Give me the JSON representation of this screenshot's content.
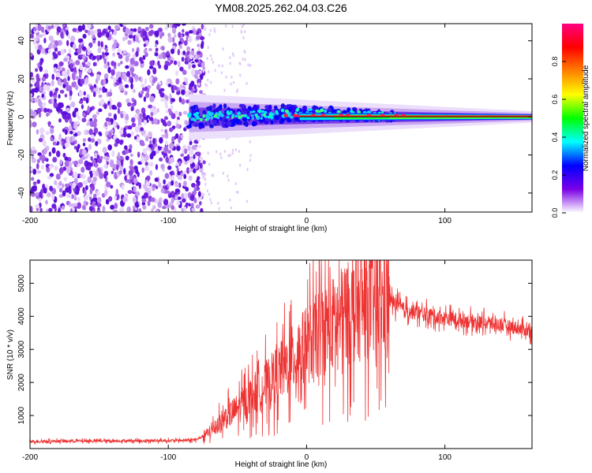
{
  "title": "YM08.2025.262.04.03.C26",
  "chart_data": [
    {
      "type": "heatmap",
      "title": "",
      "xlabel": "Height of straight line (km)",
      "ylabel": "Frequency (Hz)",
      "xlim": [
        -200,
        163
      ],
      "ylim": [
        -50,
        49
      ],
      "xticks": [
        -200,
        -100,
        0,
        100
      ],
      "yticks": [
        -40,
        -20,
        0,
        20,
        40
      ],
      "colorbar": {
        "label": "Normalized spectral amplitude",
        "range": [
          0,
          1
        ],
        "ticks": [
          "0.0",
          "0.2",
          "0.4",
          "0.6",
          "0.8"
        ],
        "colors": [
          "#ffffff",
          "#7a00e6",
          "#0000ff",
          "#00ffff",
          "#00ff00",
          "#ffff00",
          "#ff8000",
          "#ff0000",
          "#ff0080"
        ]
      },
      "description_fields": {
        "noise_region_x": [
          -200,
          -80
        ],
        "signal_band_center_hz": 0
      }
    },
    {
      "type": "line",
      "title": "",
      "xlabel": "Height of straight line (km)",
      "ylabel": "SNR (10 * v/v)",
      "xlim": [
        -200,
        163
      ],
      "ylim": [
        0,
        5700
      ],
      "xticks": [
        -200,
        -100,
        0,
        100
      ],
      "yticks": [
        1000,
        2000,
        3000,
        4000,
        5000
      ],
      "color": "#ee3333",
      "series": [
        {
          "name": "SNR",
          "x": [
            -200,
            -150,
            -100,
            -80,
            -70,
            -60,
            -50,
            -40,
            -30,
            -20,
            -10,
            0,
            10,
            20,
            30,
            40,
            50,
            55,
            60,
            70,
            80,
            100,
            120,
            140,
            163
          ],
          "values": [
            220,
            230,
            240,
            260,
            500,
            900,
            1200,
            1600,
            1900,
            2300,
            2700,
            3100,
            3500,
            3800,
            4100,
            4300,
            4400,
            4300,
            4500,
            4200,
            4100,
            3950,
            3850,
            3750,
            3550
          ]
        }
      ]
    }
  ]
}
